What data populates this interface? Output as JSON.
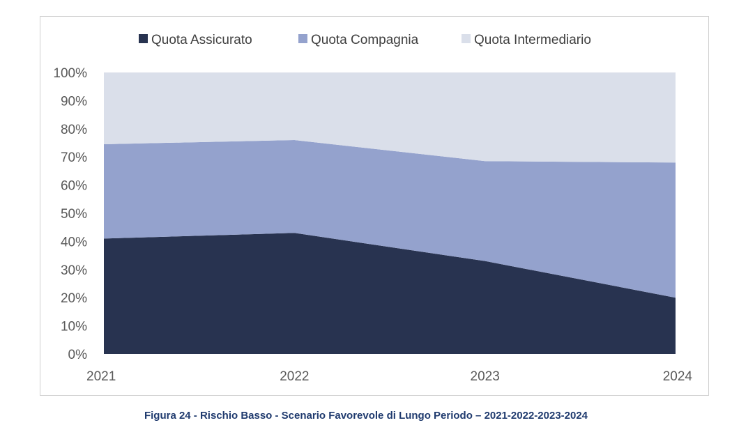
{
  "chart_data": {
    "type": "area",
    "stacked": "percent",
    "x": [
      "2021",
      "2022",
      "2023",
      "2024"
    ],
    "series": [
      {
        "name": "Quota Assicurato",
        "values": [
          41,
          43,
          33,
          20
        ],
        "color": "#283350"
      },
      {
        "name": "Quota Compagnia",
        "values": [
          33.5,
          33,
          35.5,
          48
        ],
        "color": "#94a2cd"
      },
      {
        "name": "Quota Intermediario",
        "values": [
          25.5,
          24,
          31.5,
          32
        ],
        "color": "#dadfea"
      }
    ],
    "ylim": [
      0,
      100
    ],
    "yticks": [
      "0%",
      "10%",
      "20%",
      "30%",
      "40%",
      "50%",
      "60%",
      "70%",
      "80%",
      "90%",
      "100%"
    ],
    "xticks": [
      "2021",
      "2022",
      "2023",
      "2024"
    ],
    "grid": false,
    "legend": "top-center"
  },
  "caption": "Figura 24 - Rischio Basso - Scenario Favorevole di Lungo Periodo – 2021-2022-2023-2024"
}
